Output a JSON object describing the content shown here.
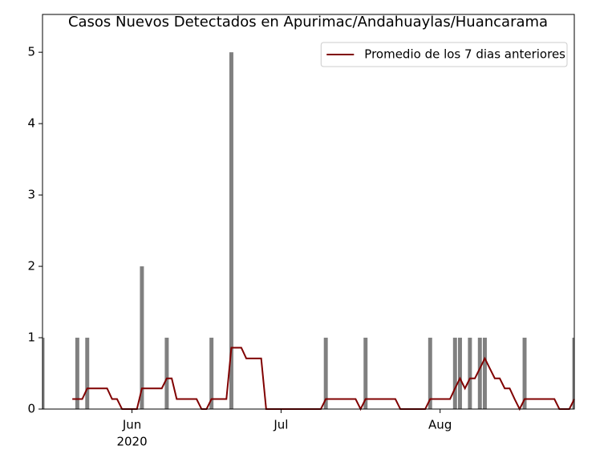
{
  "chart_data": {
    "type": "bar",
    "title": "Casos Nuevos Detectados en Apurimac/Andahuaylas/Huancarama",
    "categories": [
      null,
      null,
      null,
      null,
      null,
      null,
      null,
      null,
      null,
      null,
      null,
      null,
      null,
      null,
      null,
      null,
      null,
      null,
      "Jun",
      null,
      null,
      null,
      null,
      null,
      null,
      null,
      null,
      null,
      null,
      null,
      null,
      null,
      null,
      null,
      null,
      null,
      null,
      null,
      null,
      null,
      null,
      null,
      null,
      null,
      null,
      null,
      null,
      null,
      "Jul",
      null,
      null,
      null,
      null,
      null,
      null,
      null,
      null,
      null,
      null,
      null,
      null,
      null,
      null,
      null,
      null,
      null,
      null,
      null,
      null,
      null,
      null,
      null,
      null,
      null,
      null,
      null,
      null,
      null,
      null,
      null,
      "Aug",
      null,
      null,
      null,
      null,
      null,
      null,
      null,
      null,
      null,
      null,
      null,
      null,
      null,
      null,
      null,
      null,
      null,
      null,
      null,
      null,
      null,
      null,
      null,
      null,
      null,
      null,
      null
    ],
    "x_year": "2020",
    "series": [
      {
        "type": "bar",
        "color": "#808080",
        "values": [
          1,
          0,
          0,
          0,
          0,
          0,
          0,
          1,
          0,
          1,
          0,
          0,
          0,
          0,
          0,
          0,
          0,
          0,
          0,
          0,
          2,
          0,
          0,
          0,
          0,
          1,
          0,
          0,
          0,
          0,
          0,
          0,
          0,
          0,
          1,
          0,
          0,
          0,
          5,
          0,
          0,
          0,
          0,
          0,
          0,
          0,
          0,
          0,
          0,
          0,
          0,
          0,
          0,
          0,
          0,
          0,
          0,
          1,
          0,
          0,
          0,
          0,
          0,
          0,
          0,
          1,
          0,
          0,
          0,
          0,
          0,
          0,
          0,
          0,
          0,
          0,
          0,
          0,
          1,
          0,
          0,
          0,
          0,
          1,
          1,
          0,
          1,
          0,
          1,
          1,
          0,
          0,
          0,
          0,
          0,
          0,
          0,
          1,
          0,
          0,
          0,
          0,
          0,
          0,
          0,
          0,
          0,
          1
        ]
      },
      {
        "type": "line",
        "name": "Promedio de los 7 dias anteriores",
        "color": "#800000",
        "values": [
          null,
          null,
          null,
          null,
          null,
          null,
          0.14,
          0.14,
          0.14,
          0.29,
          0.29,
          0.29,
          0.29,
          0.29,
          0.14,
          0.14,
          0,
          0,
          0,
          0,
          0.29,
          0.29,
          0.29,
          0.29,
          0.29,
          0.43,
          0.43,
          0.14,
          0.14,
          0.14,
          0.14,
          0.14,
          0,
          0,
          0.14,
          0.14,
          0.14,
          0.14,
          0.86,
          0.86,
          0.86,
          0.71,
          0.71,
          0.71,
          0.71,
          0,
          0,
          0,
          0,
          0,
          0,
          0,
          0,
          0,
          0,
          0,
          0,
          0.14,
          0.14,
          0.14,
          0.14,
          0.14,
          0.14,
          0.14,
          0,
          0.14,
          0.14,
          0.14,
          0.14,
          0.14,
          0.14,
          0.14,
          0,
          0,
          0,
          0,
          0,
          0,
          0.14,
          0.14,
          0.14,
          0.14,
          0.14,
          0.29,
          0.43,
          0.29,
          0.43,
          0.43,
          0.57,
          0.71,
          0.57,
          0.43,
          0.43,
          0.29,
          0.29,
          0.14,
          0,
          0.14,
          0.14,
          0.14,
          0.14,
          0.14,
          0.14,
          0.14,
          0,
          0,
          0,
          0.14
        ]
      }
    ],
    "ylim": [
      0,
      5.53
    ],
    "yticks": [
      0,
      1,
      2,
      3,
      4,
      5
    ],
    "legend": "upper right"
  }
}
